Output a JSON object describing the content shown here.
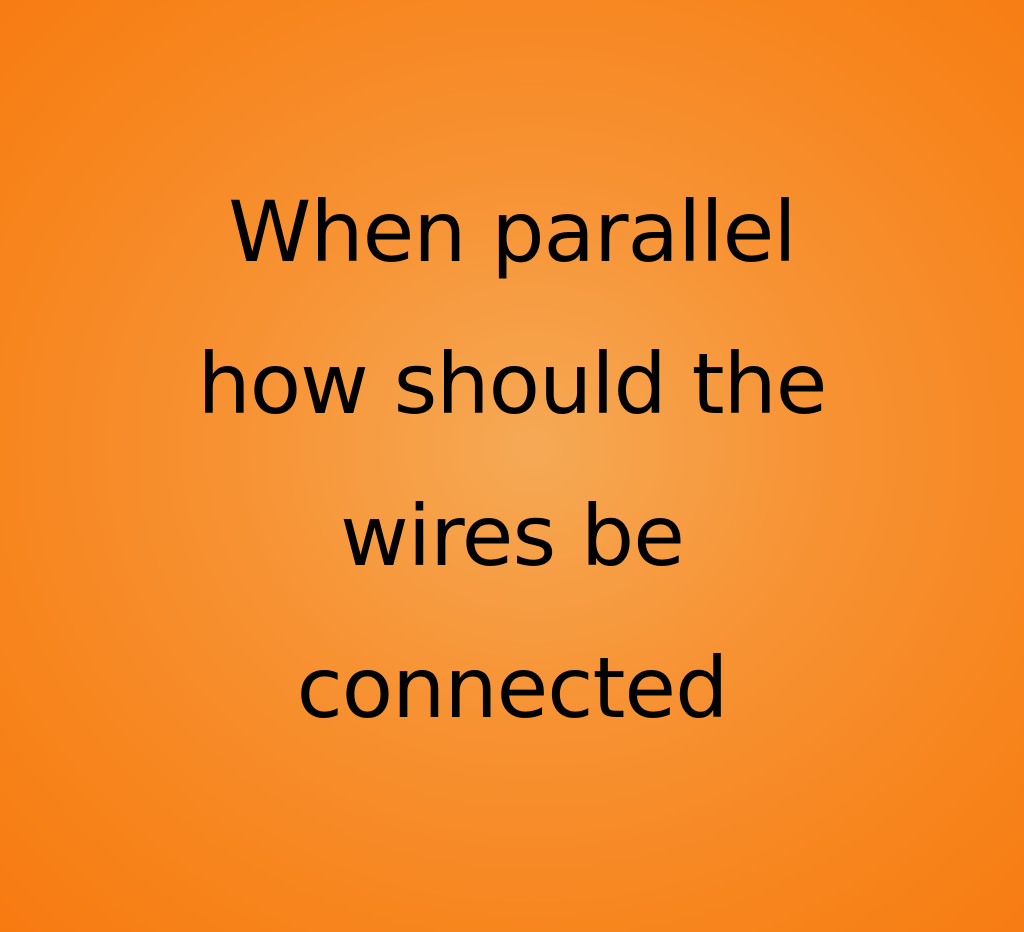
{
  "background_colors": {
    "center": "#f6a955",
    "edge": "#f77a10"
  },
  "text_color": "#000000",
  "headline": {
    "lines": [
      "When parallel",
      "how should the",
      "wires be",
      "connected"
    ]
  }
}
